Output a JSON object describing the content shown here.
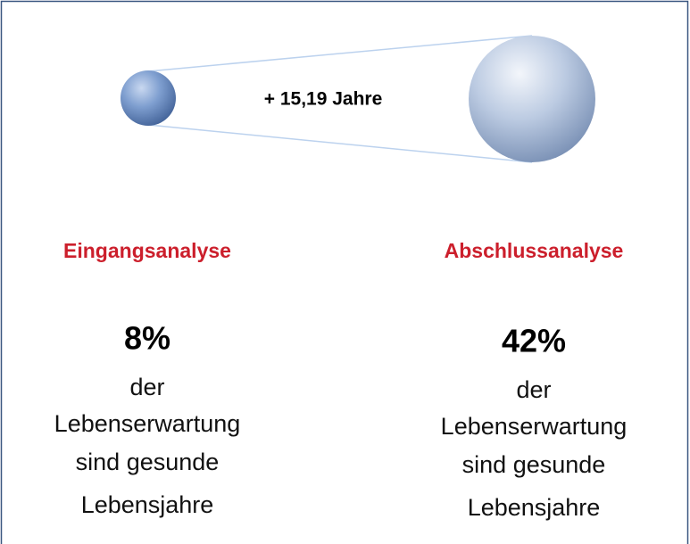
{
  "comparison": {
    "annotation": "+ 15,19 Jahre",
    "columns": [
      {
        "heading": "Eingangsanalyse",
        "value": "8%",
        "lines": [
          "der",
          "Lebenserwartung",
          "sind gesunde",
          "Lebensjahre"
        ]
      },
      {
        "heading": "Abschlussanalyse",
        "value": "42%",
        "lines": [
          "der",
          "Lebenserwartung",
          "sind gesunde",
          "Lebensjahre"
        ]
      }
    ]
  }
}
